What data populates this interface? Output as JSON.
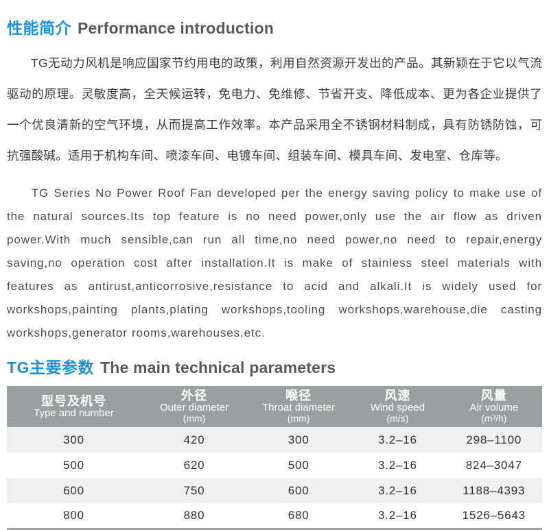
{
  "section_intro": {
    "title_zh": "性能简介",
    "title_en": "Performance introduction",
    "paragraph_zh": "TG无动力风机是响应国家节约用电的政策，利用自然资源开发出的产品。其新颖在于它以气流驱动的原理。灵敏度高，全天候运转，免电力、免维修、节省开支、降低成本、更为各企业提供了一个优良清新的空气环境，从而提高工作效率。本产品采用全不锈钢材料制成，具有防锈防蚀，可抗强酸碱。适用于机构车间、喷漆车间、电镀车间、组装车间、模具车间、发电室、仓库等。",
    "paragraph_en": "TG Series No Power Roof Fan developed per the energy saving policy to make use of the natural sources.Its top feature is no need power,only use the air flow as driven power.With much sensible,can run all time,no need power,no need to repair,energy saving,no operation cost after installation.It is make of stainless steel materials with features as antirust,anticorrosive,resistance to acid and alkali.It is widely used for workshops,painting plants,plating workshops,tooling workshops,warehouse,die casting workshops,generator rooms,warehouses,etc."
  },
  "section_params": {
    "title_zh": "TG主要参数",
    "title_en": "The main technical parameters"
  },
  "table": {
    "columns": [
      {
        "zh": "型号及机号",
        "en": "Type and number",
        "unit": ""
      },
      {
        "zh": "外径",
        "en": "Outer diameter",
        "unit": "(mm)"
      },
      {
        "zh": "喉径",
        "en": "Throat diameter",
        "unit": "(mm)"
      },
      {
        "zh": "风速",
        "en": "Wind speed",
        "unit": "(m/s)"
      },
      {
        "zh": "风量",
        "en": "Air volume",
        "unit": "(m³/h)"
      }
    ],
    "rows": [
      [
        "300",
        "420",
        "300",
        "3.2–16",
        "298–1100"
      ],
      [
        "500",
        "620",
        "500",
        "3.2–16",
        "824–3047"
      ],
      [
        "600",
        "750",
        "600",
        "3.2–16",
        "1188–4393"
      ],
      [
        "800",
        "880",
        "680",
        "3.2–16",
        "1526–5643"
      ]
    ]
  },
  "colors": {
    "accent_blue": "#1E90D4",
    "heading_gray": "#58595B",
    "table_header_bg": "#9C9E9F",
    "row_stripe": "#F0F0F1",
    "table_border": "#A2A2A2"
  }
}
